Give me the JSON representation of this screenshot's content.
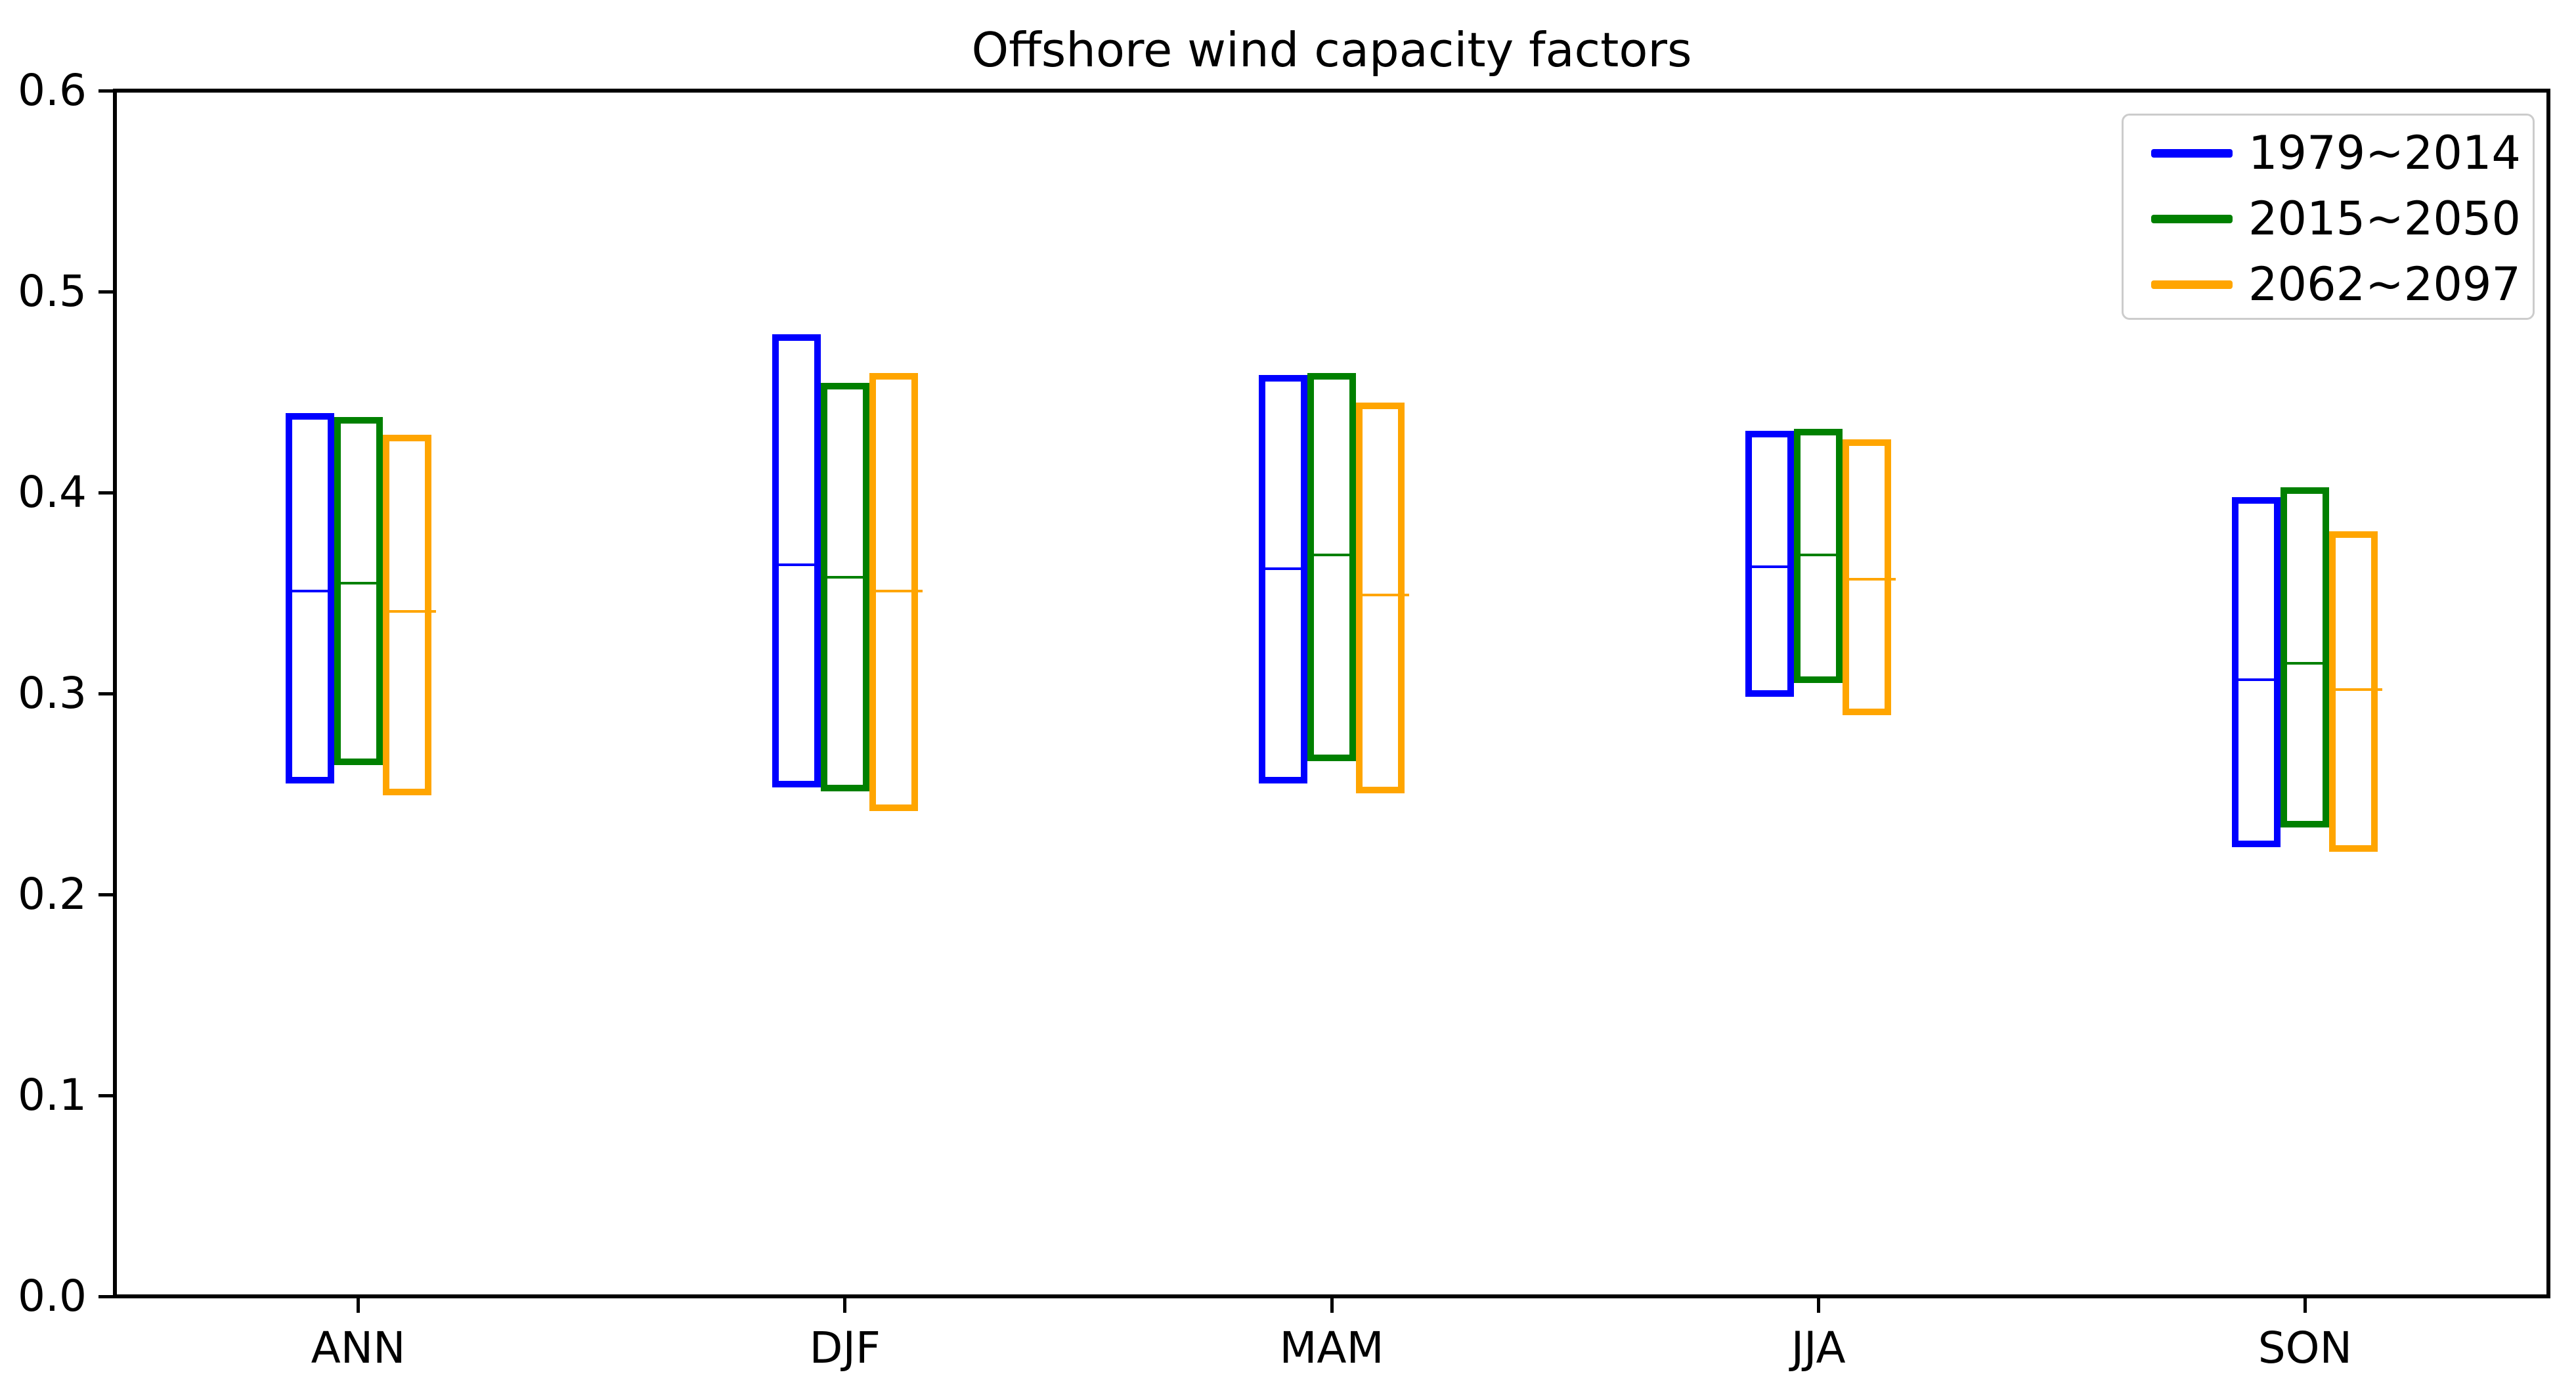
{
  "chart_data": {
    "type": "box",
    "title": "Offshore wind capacity factors",
    "categories": [
      "ANN",
      "DJF",
      "MAM",
      "JJA",
      "SON"
    ],
    "xlabel": "",
    "ylabel": "",
    "ylim": [
      0.0,
      0.6
    ],
    "yticks": [
      0.0,
      0.1,
      0.2,
      0.3,
      0.4,
      0.5,
      0.6
    ],
    "ytick_labels": [
      "0.0",
      "0.1",
      "0.2",
      "0.3",
      "0.4",
      "0.5",
      "0.6"
    ],
    "grid": false,
    "legend_position": "upper right",
    "box_style": "range box (min to max) with median line, no whiskers",
    "series": [
      {
        "name": "1979~2014",
        "color": "#0000ff",
        "min": [
          0.257,
          0.255,
          0.257,
          0.3,
          0.225
        ],
        "median": [
          0.351,
          0.364,
          0.362,
          0.363,
          0.307
        ],
        "max": [
          0.438,
          0.477,
          0.457,
          0.429,
          0.396
        ]
      },
      {
        "name": "2015~2050",
        "color": "#008000",
        "min": [
          0.266,
          0.253,
          0.268,
          0.307,
          0.235
        ],
        "median": [
          0.355,
          0.358,
          0.369,
          0.369,
          0.315
        ],
        "max": [
          0.436,
          0.453,
          0.458,
          0.43,
          0.401
        ]
      },
      {
        "name": "2062~2097",
        "color": "#ffa500",
        "min": [
          0.251,
          0.243,
          0.252,
          0.291,
          0.223
        ],
        "median": [
          0.341,
          0.351,
          0.349,
          0.357,
          0.302
        ],
        "max": [
          0.427,
          0.458,
          0.443,
          0.425,
          0.379
        ]
      }
    ]
  }
}
